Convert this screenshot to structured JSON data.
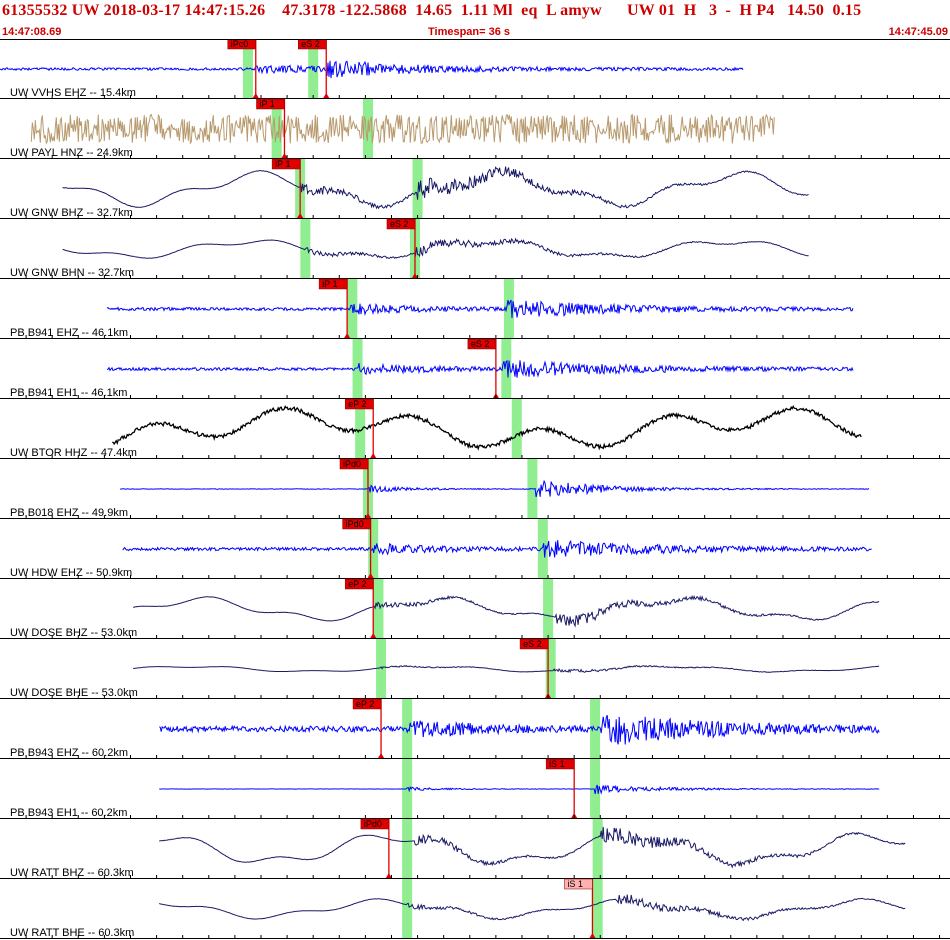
{
  "header": {
    "title": "61355532 UW 2018-03-17 14:47:15.26    47.3178 -122.5868  14.65  1.11 Ml  eq  L amyw      UW 01  H   3  -  H P4   14.50  0.15",
    "start_time": "14:47:08.69",
    "timespan": "Timespan=  36 s",
    "end_time": "14:47:45.09"
  },
  "colors": {
    "header_text": "#cc0000",
    "pick_box": "#e00000",
    "pick_box_light": "#ffb0b0",
    "green_window": "#90ee90",
    "trace_blue": "#0000ff",
    "trace_navy": "#1a1a66",
    "trace_tan": "#b89a6e",
    "trace_black": "#000000"
  },
  "channels": [
    {
      "label": "UW VVHS EHZ -- 15.4km",
      "color": "trace_blue",
      "start_s": 0.0,
      "end_s": 28.5,
      "style": "noise",
      "amp": 0.1,
      "picks": [
        {
          "label": "iPc0",
          "t": 9.8,
          "light": false
        },
        {
          "label": "eS 2",
          "t": 12.5,
          "light": false
        }
      ],
      "green": [
        9.5,
        12.0
      ],
      "event_t": [
        9.8,
        12.5
      ]
    },
    {
      "label": "UW PAYL HNZ -- 24.9km",
      "color": "trace_tan",
      "start_s": 1.2,
      "end_s": 29.7,
      "style": "tan",
      "amp": 0.32,
      "picks": [
        {
          "label": "iP 1",
          "t": 10.9,
          "light": false
        }
      ],
      "green": [
        10.6,
        14.1
      ],
      "event_t": [
        10.9,
        14.3
      ]
    },
    {
      "label": "UW GNW BHZ -- 32.7km",
      "color": "trace_navy",
      "start_s": 2.4,
      "end_s": 31.0,
      "style": "wave",
      "amp": 0.32,
      "picks": [
        {
          "label": "iP 1",
          "t": 11.5,
          "light": false
        }
      ],
      "green": [
        11.5,
        16.0
      ],
      "event_t": [
        11.5,
        16.0
      ]
    },
    {
      "label": "UW GNW BHN -- 32.7km",
      "color": "trace_navy",
      "start_s": 2.4,
      "end_s": 31.0,
      "style": "wave",
      "amp": 0.18,
      "picks": [
        {
          "label": "eS 2",
          "t": 15.9,
          "light": false
        }
      ],
      "green": [
        11.7,
        15.9
      ],
      "event_t": [
        11.7,
        15.9
      ]
    },
    {
      "label": "PB B941 EHZ -- 46.1km",
      "color": "trace_blue",
      "start_s": 4.1,
      "end_s": 32.7,
      "style": "noise",
      "amp": 0.12,
      "picks": [
        {
          "label": "iP 1",
          "t": 13.3,
          "light": false
        }
      ],
      "green": [
        13.5,
        19.5
      ],
      "event_t": [
        13.4,
        19.4
      ]
    },
    {
      "label": "PB B941 EH1 -- 46.1km",
      "color": "trace_blue",
      "start_s": 4.1,
      "end_s": 32.7,
      "style": "noise",
      "amp": 0.12,
      "picks": [
        {
          "label": "eS 2",
          "t": 19.0,
          "light": false
        }
      ],
      "green": [
        13.7,
        19.4
      ],
      "event_t": [
        13.7,
        19.2
      ]
    },
    {
      "label": "UW BTOR HHZ -- 47.4km",
      "color": "trace_black",
      "start_s": 4.3,
      "end_s": 33.0,
      "style": "btor",
      "amp": 0.4,
      "picks": [
        {
          "label": "eP 2",
          "t": 14.3,
          "light": false
        }
      ],
      "green": [
        13.8,
        19.8
      ],
      "event_t": [
        14.4,
        19.8
      ]
    },
    {
      "label": "PB B018 EHZ -- 49.9km",
      "color": "trace_blue",
      "start_s": 4.6,
      "end_s": 33.3,
      "style": "quiet",
      "amp": 0.2,
      "picks": [
        {
          "label": "iPd0",
          "t": 14.1,
          "light": false
        }
      ],
      "green": [
        14.1,
        20.4
      ],
      "event_t": [
        14.1,
        20.5
      ]
    },
    {
      "label": "UW HDW EHZ -- 50.9km",
      "color": "trace_blue",
      "start_s": 4.7,
      "end_s": 33.4,
      "style": "noise",
      "amp": 0.12,
      "picks": [
        {
          "label": "iPd0",
          "t": 14.2,
          "light": false
        }
      ],
      "green": [
        14.3,
        20.8
      ],
      "event_t": [
        14.3,
        20.8
      ]
    },
    {
      "label": "UW DOSE BHZ -- 53.0km",
      "color": "trace_navy",
      "start_s": 5.1,
      "end_s": 33.7,
      "style": "wave",
      "amp": 0.22,
      "picks": [
        {
          "label": "eP 2",
          "t": 14.3,
          "light": false
        }
      ],
      "green": [
        14.5,
        21.0
      ],
      "event_t": [
        14.3,
        21.3
      ]
    },
    {
      "label": "UW DOSE BHE -- 53.0km",
      "color": "trace_navy",
      "start_s": 5.1,
      "end_s": 33.7,
      "style": "wave",
      "amp": 0.06,
      "picks": [
        {
          "label": "eS 2",
          "t": 21.0,
          "light": false
        }
      ],
      "green": [
        14.6,
        21.1
      ],
      "event_t": [
        14.6,
        21.2
      ]
    },
    {
      "label": "PB B943 EHZ -- 60.2km",
      "color": "trace_blue",
      "start_s": 6.1,
      "end_s": 33.7,
      "style": "noise",
      "amp": 0.22,
      "picks": [
        {
          "label": "eP 2",
          "t": 14.6,
          "light": false
        }
      ],
      "green": [
        15.6,
        22.8
      ],
      "event_t": [
        15.6,
        23.0
      ]
    },
    {
      "label": "PB B943 EH1 -- 60.2km",
      "color": "trace_blue",
      "start_s": 6.1,
      "end_s": 33.7,
      "style": "quiet",
      "amp": 0.1,
      "picks": [
        {
          "label": "iS 1",
          "t": 22.0,
          "light": false
        }
      ],
      "green": [
        15.6,
        22.8
      ],
      "event_t": [
        15.6,
        22.8
      ]
    },
    {
      "label": "UW RATT BHZ -- 60.3km",
      "color": "trace_navy",
      "start_s": 6.1,
      "end_s": 34.7,
      "style": "wave",
      "amp": 0.3,
      "picks": [
        {
          "label": "iPd0",
          "t": 14.9,
          "light": false
        }
      ],
      "green": [
        15.6,
        22.9
      ],
      "event_t": [
        15.9,
        23.0
      ]
    },
    {
      "label": "UW RATT BHE -- 60.3km",
      "color": "trace_navy",
      "start_s": 6.1,
      "end_s": 34.7,
      "style": "wave",
      "amp": 0.18,
      "picks": [
        {
          "label": "iS 1",
          "t": 22.7,
          "light": true
        }
      ],
      "green": [
        15.6,
        22.9
      ],
      "event_t": [
        15.6,
        23.6
      ]
    }
  ]
}
